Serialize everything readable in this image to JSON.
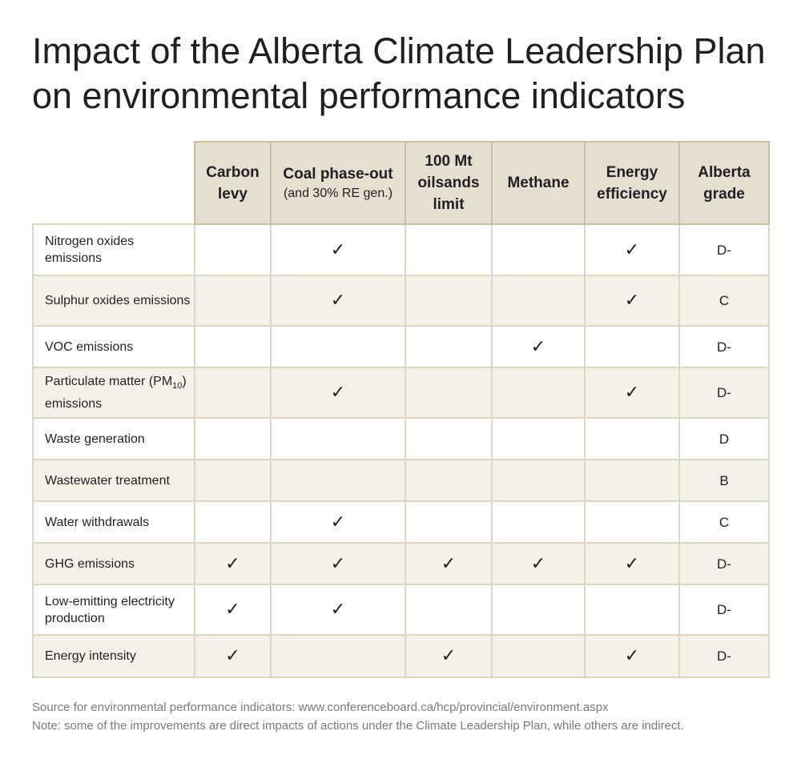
{
  "title": "Impact of the Alberta Climate Leadership Plan on environmental performance indicators",
  "chart_data": {
    "type": "table",
    "columns": [
      {
        "label": "Carbon levy",
        "sub": ""
      },
      {
        "label": "Coal phase-out",
        "sub": "(and 30% RE gen.)"
      },
      {
        "label": "100 Mt oilsands limit",
        "sub": ""
      },
      {
        "label": "Methane",
        "sub": ""
      },
      {
        "label": "Energy efficiency",
        "sub": ""
      },
      {
        "label": "Alberta grade",
        "sub": ""
      }
    ],
    "check_symbol": "✓",
    "rows": [
      {
        "indicator": "Nitrogen oxides emissions",
        "checks": [
          false,
          true,
          false,
          false,
          true
        ],
        "grade": "D-"
      },
      {
        "indicator": "Sulphur oxides emissions",
        "checks": [
          false,
          true,
          false,
          false,
          true
        ],
        "grade": "C"
      },
      {
        "indicator": "VOC emissions",
        "checks": [
          false,
          false,
          false,
          true,
          false
        ],
        "grade": "D-"
      },
      {
        "indicator": "Particulate matter (PM10) emissions",
        "indicator_pre": "Particulate matter (PM",
        "indicator_sub": "10",
        "indicator_post": ") emissions",
        "checks": [
          false,
          true,
          false,
          false,
          true
        ],
        "grade": "D-"
      },
      {
        "indicator": "Waste generation",
        "checks": [
          false,
          false,
          false,
          false,
          false
        ],
        "grade": "D"
      },
      {
        "indicator": "Wastewater treatment",
        "checks": [
          false,
          false,
          false,
          false,
          false
        ],
        "grade": "B"
      },
      {
        "indicator": "Water withdrawals",
        "checks": [
          false,
          true,
          false,
          false,
          false
        ],
        "grade": "C"
      },
      {
        "indicator": "GHG emissions",
        "checks": [
          true,
          true,
          true,
          true,
          true
        ],
        "grade": "D-"
      },
      {
        "indicator": "Low-emitting electricity production",
        "checks": [
          true,
          true,
          false,
          false,
          false
        ],
        "grade": "D-"
      },
      {
        "indicator": "Energy intensity",
        "checks": [
          true,
          false,
          true,
          false,
          true
        ],
        "grade": "D-"
      }
    ]
  },
  "source_note": "Source for environmental performance indicators: www.conferenceboard.ca/hcp/provincial/environment.aspx",
  "note": "Note: some of the improvements are direct impacts of actions under the Climate Leadership Plan, while others are indirect."
}
